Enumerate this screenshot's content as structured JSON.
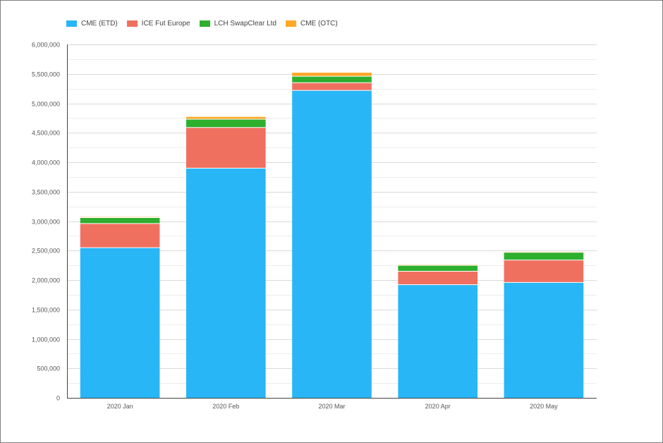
{
  "chart_data": {
    "type": "bar",
    "stacked": true,
    "categories": [
      "2020 Jan",
      "2020 Feb",
      "2020 Mar",
      "2020 Apr",
      "2020 May"
    ],
    "series": [
      {
        "name": "CME (ETD)",
        "color": "#29b6f6",
        "values": [
          2550000,
          3900000,
          5220000,
          1920000,
          1960000
        ]
      },
      {
        "name": "ICE Fut Europe",
        "color": "#f07060",
        "values": [
          410000,
          690000,
          130000,
          230000,
          380000
        ]
      },
      {
        "name": "LCH SwapClear Ltd",
        "color": "#2eaf2e",
        "values": [
          100000,
          140000,
          110000,
          100000,
          130000
        ]
      },
      {
        "name": "CME (OTC)",
        "color": "#ffa726",
        "values": [
          10000,
          40000,
          60000,
          10000,
          10000
        ]
      }
    ],
    "ylim": [
      0,
      6000000
    ],
    "y_ticks": [
      "0",
      "500,000",
      "1,000,000",
      "1,500,000",
      "2,000,000",
      "2,500,000",
      "3,000,000",
      "3,500,000",
      "4,000,000",
      "4,500,000",
      "5,000,000",
      "5,500,000",
      "6,000,000"
    ],
    "grid": true,
    "legend_position": "top-left",
    "title": "",
    "xlabel": "",
    "ylabel": ""
  }
}
